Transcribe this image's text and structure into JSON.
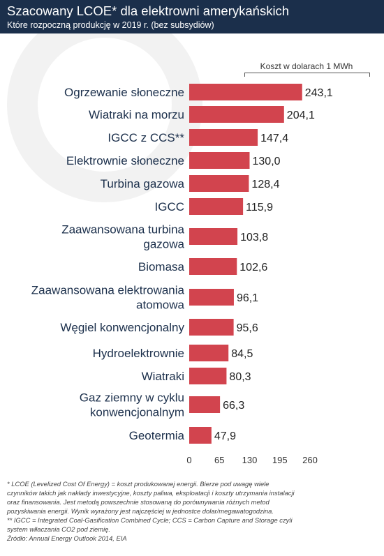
{
  "header": {
    "title": "Szacowany LCOE* dla elektrowni amerykańskich",
    "subtitle": "Które rozpoczną produkcję w 2019 r. (bez subsydiów)"
  },
  "unit_label": "Koszt w dolarach 1 MWh",
  "chart_data": {
    "type": "bar",
    "orientation": "horizontal",
    "title": "Szacowany LCOE* dla elektrowni amerykańskich",
    "subtitle": "Które rozpoczną produkcję w 2019 r. (bez subsydiów)",
    "unit": "Koszt w dolarach 1 MWh",
    "categories": [
      [
        "Ogrzewanie słoneczne"
      ],
      [
        "Wiatraki  na morzu"
      ],
      [
        "IGCC z CCS**"
      ],
      [
        "Elektrownie słoneczne"
      ],
      [
        "Turbina gazowa"
      ],
      [
        "IGCC"
      ],
      [
        "Zaawansowana turbina",
        "gazowa"
      ],
      [
        "Biomasa"
      ],
      [
        "Zaawansowana elektrowania",
        "atomowa"
      ],
      [
        "Węgiel konwencjonalny"
      ],
      [
        "Hydroelektrownie"
      ],
      [
        "Wiatraki"
      ],
      [
        "Gaz ziemny w cyklu",
        "konwencjonalnym"
      ],
      [
        "Geotermia"
      ]
    ],
    "values": [
      243.1,
      204.1,
      147.4,
      130.0,
      128.4,
      115.9,
      103.8,
      102.6,
      96.1,
      95.6,
      84.5,
      80.3,
      66.3,
      47.9
    ],
    "value_labels": [
      "243,1",
      "204,1",
      "147,4",
      "130,0",
      "128,4",
      "115,9",
      "103,8",
      "102,6",
      "96,1",
      "95,6",
      "84,5",
      "80,3",
      "66,3",
      "47,9"
    ],
    "xticks": [
      0,
      65,
      130,
      195,
      260
    ],
    "xtick_labels": [
      "0",
      "65",
      "130",
      "195",
      "260"
    ],
    "xlim": [
      0,
      260
    ],
    "grid": false,
    "bar_color": "#d2444e",
    "category_color": "#1b2f4b"
  },
  "footer": {
    "lines": [
      "*  LCOE (Levelized Cost Of Energy) = koszt produkowanej energii. Bierze pod uwagę wiele",
      "czynników takich jak nakłady inwestycyjne, koszty paliwa, eksploatacji i koszty utrzymania instalacji",
      "oraz finansowania. Jest metodą powszechnie stosowaną do porównywania różnych metod",
      "pozyskiwania energii. Wynik wyrażony jest najczęściej w jednostce dolar/megawatogodzina.",
      "** IGCC = Integrated Coal-Gasification Combined Cycle; CCS = Carbon Capture and Storage czyli",
      "system włłaczania CO2 pod ziemię.",
      "Źródło: Annual Energy Outlook 2014, EIA"
    ]
  }
}
